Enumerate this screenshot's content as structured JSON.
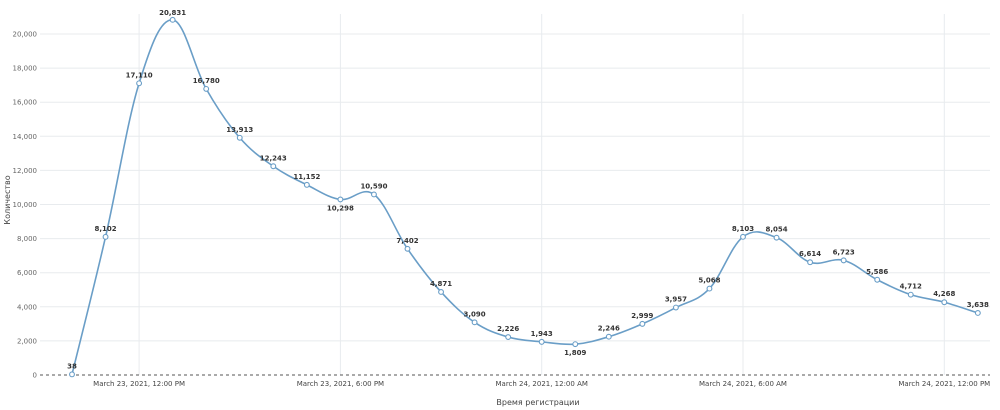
{
  "chart_data": {
    "type": "line",
    "xlabel": "Время регистрации",
    "ylabel": "Количество",
    "ylim": [
      0,
      21000
    ],
    "yticks": [
      0,
      2000,
      4000,
      6000,
      8000,
      10000,
      12000,
      14000,
      16000,
      18000,
      20000
    ],
    "ytick_labels": [
      "0",
      "2,000",
      "4,000",
      "6,000",
      "8,000",
      "10,000",
      "12,000",
      "14,000",
      "16,000",
      "18,000",
      "20,000"
    ],
    "xrange_hours": [
      -2,
      27
    ],
    "xticks": [
      {
        "hour": 0,
        "label": "March 23, 2021, 12:00 PM"
      },
      {
        "hour": 6,
        "label": "March 23, 2021, 6:00 PM"
      },
      {
        "hour": 12,
        "label": "March 24, 2021, 12:00 AM"
      },
      {
        "hour": 18,
        "label": "March 24, 2021, 6:00 AM"
      },
      {
        "hour": 24,
        "label": "March 24, 2021, 12:00 PM"
      }
    ],
    "grid": true,
    "series": [
      {
        "color": "#6a9ec7",
        "points": [
          {
            "hour": -2,
            "value": 38,
            "label": "38"
          },
          {
            "hour": -1,
            "value": 8102,
            "label": "8,102"
          },
          {
            "hour": 0,
            "value": 17110,
            "label": "17,110"
          },
          {
            "hour": 1,
            "value": 20831,
            "label": "20,831"
          },
          {
            "hour": 2,
            "value": 16780,
            "label": "16,780"
          },
          {
            "hour": 3,
            "value": 13913,
            "label": "13,913"
          },
          {
            "hour": 4,
            "value": 12243,
            "label": "12,243"
          },
          {
            "hour": 5,
            "value": 11152,
            "label": "11,152"
          },
          {
            "hour": 6,
            "value": 10298,
            "label": "10,298"
          },
          {
            "hour": 7,
            "value": 10590,
            "label": "10,590"
          },
          {
            "hour": 8,
            "value": 7402,
            "label": "7,402"
          },
          {
            "hour": 9,
            "value": 4871,
            "label": "4,871"
          },
          {
            "hour": 10,
            "value": 3090,
            "label": "3,090"
          },
          {
            "hour": 11,
            "value": 2226,
            "label": "2,226"
          },
          {
            "hour": 12,
            "value": 1943,
            "label": "1,943"
          },
          {
            "hour": 13,
            "value": 1809,
            "label": "1,809"
          },
          {
            "hour": 14,
            "value": 2246,
            "label": "2,246"
          },
          {
            "hour": 15,
            "value": 2999,
            "label": "2,999"
          },
          {
            "hour": 16,
            "value": 3957,
            "label": "3,957"
          },
          {
            "hour": 17,
            "value": 5068,
            "label": "5,068"
          },
          {
            "hour": 18,
            "value": 8103,
            "label": "8,103"
          },
          {
            "hour": 19,
            "value": 8054,
            "label": "8,054"
          },
          {
            "hour": 20,
            "value": 6614,
            "label": "6,614"
          },
          {
            "hour": 21,
            "value": 6723,
            "label": "6,723"
          },
          {
            "hour": 22,
            "value": 5586,
            "label": "5,586"
          },
          {
            "hour": 23,
            "value": 4712,
            "label": "4,712"
          },
          {
            "hour": 24,
            "value": 4268,
            "label": "4,268"
          },
          {
            "hour": 25,
            "value": 3638,
            "label": "3,638"
          }
        ]
      }
    ]
  }
}
